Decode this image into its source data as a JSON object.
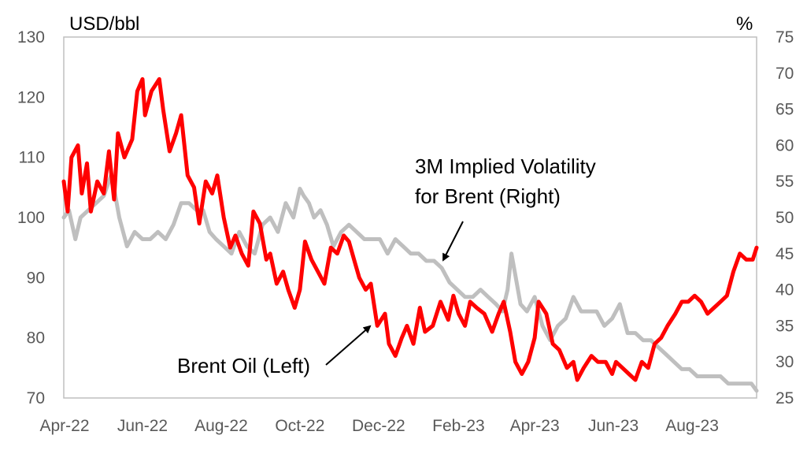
{
  "chart_data": {
    "type": "line",
    "left_axis_unit": "USD/bbl",
    "right_axis_unit": "%",
    "ylim_left": [
      70,
      130
    ],
    "ylim_right": [
      25,
      75
    ],
    "yticks_left": [
      70,
      80,
      90,
      100,
      110,
      120,
      130
    ],
    "yticks_right": [
      25,
      30,
      35,
      40,
      45,
      50,
      55,
      60,
      65,
      70,
      75
    ],
    "xlim": [
      "2022-04-01",
      "2023-09-20"
    ],
    "xticks": [
      {
        "date": "2022-04-01",
        "label": "Apr-22"
      },
      {
        "date": "2022-06-01",
        "label": "Jun-22"
      },
      {
        "date": "2022-08-01",
        "label": "Aug-22"
      },
      {
        "date": "2022-10-01",
        "label": "Oct-22"
      },
      {
        "date": "2022-12-01",
        "label": "Dec-22"
      },
      {
        "date": "2023-02-01",
        "label": "Feb-23"
      },
      {
        "date": "2023-04-01",
        "label": "Apr-23"
      },
      {
        "date": "2023-06-01",
        "label": "Jun-23"
      },
      {
        "date": "2023-08-01",
        "label": "Aug-23"
      }
    ],
    "grid": false,
    "colors": {
      "brent": "#ff0000",
      "vol": "#bfbfbf",
      "axis": "#bfbfbf"
    },
    "annotations": [
      {
        "id": "vol",
        "lines": [
          "3M Implied Volatility",
          "for Brent (Right)"
        ]
      },
      {
        "id": "brent",
        "lines": [
          "Brent Oil (Left)"
        ]
      }
    ],
    "series": [
      {
        "name": "Brent Oil (Left)",
        "axis": "left",
        "x": [
          "2022-04-01",
          "2022-04-04",
          "2022-04-07",
          "2022-04-12",
          "2022-04-15",
          "2022-04-19",
          "2022-04-22",
          "2022-04-27",
          "2022-05-02",
          "2022-05-06",
          "2022-05-10",
          "2022-05-13",
          "2022-05-18",
          "2022-05-24",
          "2022-05-28",
          "2022-06-01",
          "2022-06-03",
          "2022-06-08",
          "2022-06-14",
          "2022-06-17",
          "2022-06-22",
          "2022-06-27",
          "2022-07-01",
          "2022-07-06",
          "2022-07-11",
          "2022-07-15",
          "2022-07-20",
          "2022-07-25",
          "2022-07-29",
          "2022-08-03",
          "2022-08-08",
          "2022-08-12",
          "2022-08-17",
          "2022-08-22",
          "2022-08-26",
          "2022-08-31",
          "2022-09-05",
          "2022-09-08",
          "2022-09-13",
          "2022-09-18",
          "2022-09-22",
          "2022-09-27",
          "2022-10-01",
          "2022-10-05",
          "2022-10-10",
          "2022-10-15",
          "2022-10-20",
          "2022-10-25",
          "2022-10-30",
          "2022-11-04",
          "2022-11-08",
          "2022-11-12",
          "2022-11-16",
          "2022-11-21",
          "2022-11-25",
          "2022-11-30",
          "2022-12-03",
          "2022-12-06",
          "2022-12-09",
          "2022-12-14",
          "2022-12-19",
          "2022-12-23",
          "2022-12-28",
          "2023-01-02",
          "2023-01-06",
          "2023-01-12",
          "2023-01-18",
          "2023-01-24",
          "2023-01-28",
          "2023-02-01",
          "2023-02-06",
          "2023-02-10",
          "2023-02-15",
          "2023-02-21",
          "2023-02-27",
          "2023-03-04",
          "2023-03-08",
          "2023-03-13",
          "2023-03-17",
          "2023-03-22",
          "2023-03-27",
          "2023-04-01",
          "2023-04-04",
          "2023-04-10",
          "2023-04-15",
          "2023-04-20",
          "2023-04-26",
          "2023-05-01",
          "2023-05-04",
          "2023-05-09",
          "2023-05-15",
          "2023-05-20",
          "2023-05-26",
          "2023-05-31",
          "2023-06-03",
          "2023-06-08",
          "2023-06-13",
          "2023-06-18",
          "2023-06-23",
          "2023-06-28",
          "2023-07-03",
          "2023-07-08",
          "2023-07-13",
          "2023-07-19",
          "2023-07-24",
          "2023-07-29",
          "2023-08-03",
          "2023-08-08",
          "2023-08-13",
          "2023-08-18",
          "2023-08-23",
          "2023-08-28",
          "2023-09-02",
          "2023-09-07",
          "2023-09-12",
          "2023-09-17",
          "2023-09-20"
        ],
        "y": [
          106,
          101,
          110,
          112,
          104,
          109,
          101,
          106,
          104,
          111,
          103,
          114,
          110,
          113,
          121,
          123,
          117,
          121,
          123,
          118,
          111,
          114,
          117,
          107,
          105,
          99,
          106,
          104,
          107,
          100,
          95,
          97,
          94,
          92,
          101,
          99,
          93,
          94,
          89,
          91,
          88,
          85,
          88,
          96,
          93,
          91,
          89,
          95,
          94,
          97,
          96,
          93,
          90,
          88,
          89,
          82,
          83,
          84,
          79,
          77,
          80,
          82,
          79,
          85,
          81,
          82,
          86,
          83,
          87,
          84,
          82,
          86,
          85,
          84,
          81,
          84,
          86,
          81,
          76,
          74,
          76,
          80,
          86,
          84,
          79,
          78,
          75,
          76,
          73,
          75,
          77,
          76,
          76,
          74,
          76,
          75,
          74,
          73,
          76,
          75,
          79,
          80,
          82,
          84,
          86,
          86,
          87,
          86,
          84,
          85,
          86,
          87,
          91,
          94,
          93,
          93,
          95
        ],
        "color": "#ff0000"
      },
      {
        "name": "3M Implied Volatility for Brent (Right)",
        "axis": "right",
        "x": [
          "2022-04-01",
          "2022-04-05",
          "2022-04-10",
          "2022-04-14",
          "2022-04-20",
          "2022-04-26",
          "2022-05-02",
          "2022-05-08",
          "2022-05-14",
          "2022-05-20",
          "2022-05-26",
          "2022-06-01",
          "2022-06-07",
          "2022-06-13",
          "2022-06-19",
          "2022-06-25",
          "2022-07-01",
          "2022-07-07",
          "2022-07-13",
          "2022-07-18",
          "2022-07-23",
          "2022-07-28",
          "2022-08-03",
          "2022-08-09",
          "2022-08-15",
          "2022-08-21",
          "2022-08-27",
          "2022-09-02",
          "2022-09-08",
          "2022-09-14",
          "2022-09-20",
          "2022-09-26",
          "2022-10-01",
          "2022-10-04",
          "2022-10-08",
          "2022-10-12",
          "2022-10-17",
          "2022-10-22",
          "2022-10-27",
          "2022-11-02",
          "2022-11-08",
          "2022-11-14",
          "2022-11-20",
          "2022-11-26",
          "2022-12-02",
          "2022-12-08",
          "2022-12-14",
          "2022-12-20",
          "2022-12-26",
          "2023-01-01",
          "2023-01-07",
          "2023-01-13",
          "2023-01-19",
          "2023-01-25",
          "2023-01-31",
          "2023-02-06",
          "2023-02-12",
          "2023-02-18",
          "2023-02-24",
          "2023-03-02",
          "2023-03-07",
          "2023-03-11",
          "2023-03-14",
          "2023-03-17",
          "2023-03-21",
          "2023-03-26",
          "2023-04-01",
          "2023-04-07",
          "2023-04-13",
          "2023-04-19",
          "2023-04-25",
          "2023-05-01",
          "2023-05-07",
          "2023-05-13",
          "2023-05-19",
          "2023-05-25",
          "2023-05-31",
          "2023-06-06",
          "2023-06-12",
          "2023-06-18",
          "2023-06-24",
          "2023-06-30",
          "2023-07-06",
          "2023-07-12",
          "2023-07-18",
          "2023-07-24",
          "2023-07-30",
          "2023-08-05",
          "2023-08-11",
          "2023-08-17",
          "2023-08-23",
          "2023-08-29",
          "2023-09-04",
          "2023-09-10",
          "2023-09-16",
          "2023-09-20"
        ],
        "y": [
          50,
          51,
          47,
          50,
          51,
          52,
          53,
          56,
          50,
          46,
          48,
          47,
          47,
          48,
          47,
          49,
          52,
          52,
          51,
          51,
          48,
          47,
          46,
          45,
          48,
          46,
          45,
          49,
          50,
          48,
          52,
          50,
          54,
          53,
          52,
          50,
          51,
          49,
          46,
          48,
          49,
          48,
          47,
          47,
          47,
          45,
          47,
          46,
          45,
          45,
          44,
          44,
          43,
          41,
          40,
          39,
          39,
          40,
          39,
          38,
          37,
          40,
          45,
          42,
          38,
          37,
          39,
          35,
          33,
          35,
          36,
          39,
          37,
          37,
          37,
          35,
          36,
          38,
          34,
          34,
          33,
          33,
          32,
          31,
          30,
          29,
          29,
          28,
          28,
          28,
          28,
          27,
          27,
          27,
          27,
          26
        ],
        "color": "#bfbfbf"
      }
    ]
  }
}
